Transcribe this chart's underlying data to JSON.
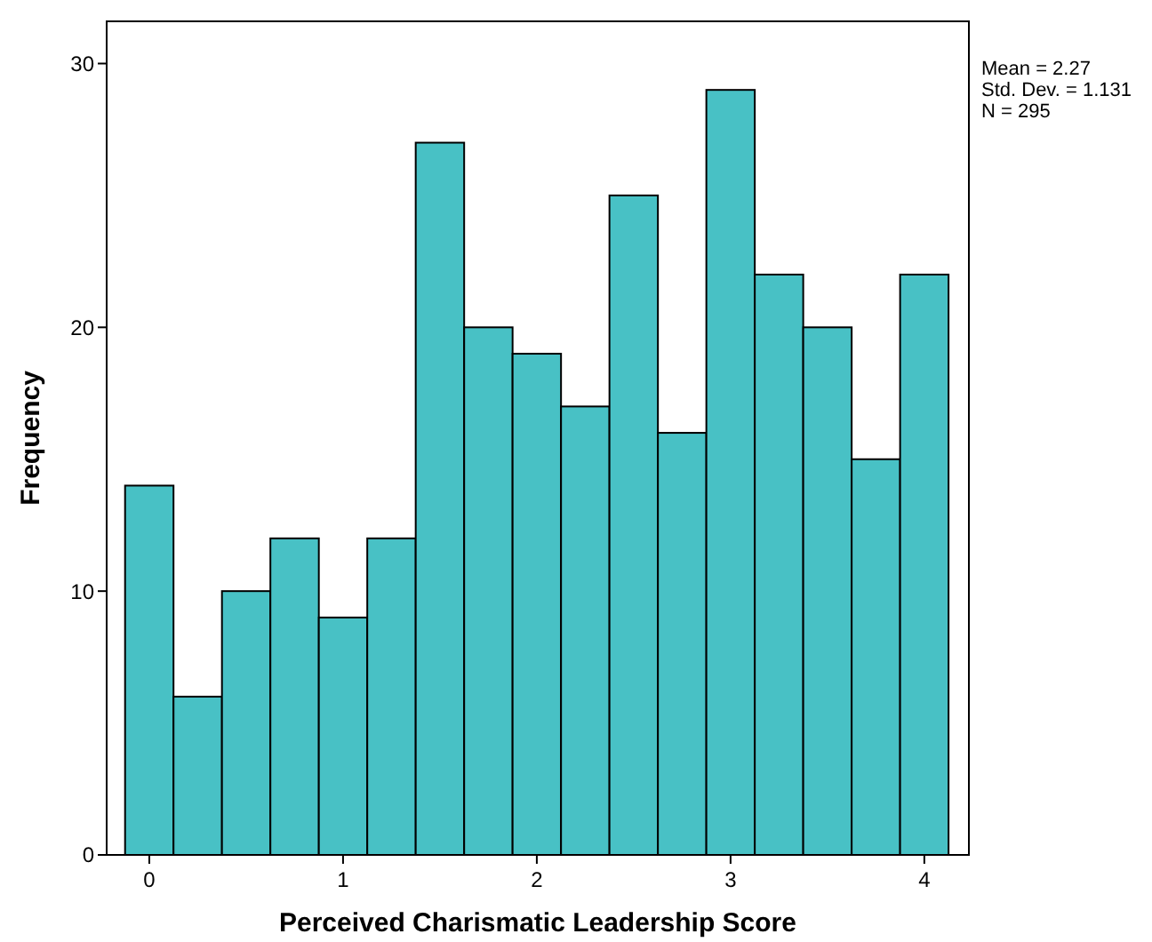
{
  "chart_data": {
    "type": "histogram",
    "xlabel": "Perceived Charismatic Leadership Score",
    "ylabel": "Frequency",
    "bins": [
      -0.125,
      0.125,
      0.375,
      0.625,
      0.875,
      1.125,
      1.375,
      1.625,
      1.875,
      2.125,
      2.375,
      2.625,
      2.875,
      3.125,
      3.375,
      3.625,
      3.875,
      4.125
    ],
    "values": [
      14,
      6,
      10,
      12,
      9,
      12,
      27,
      20,
      19,
      17,
      25,
      16,
      29,
      22,
      20,
      15,
      22
    ],
    "color": "#48c1c5",
    "xlim": [
      -0.22,
      4.23
    ],
    "xticks": [
      0,
      1,
      2,
      3,
      4
    ],
    "ylim": [
      0,
      31.6
    ],
    "yticks": [
      0,
      10,
      20,
      30
    ],
    "annotations": [
      "Mean = 2.27",
      "Std. Dev. = 1.131",
      "N = 295"
    ],
    "grid": false
  }
}
